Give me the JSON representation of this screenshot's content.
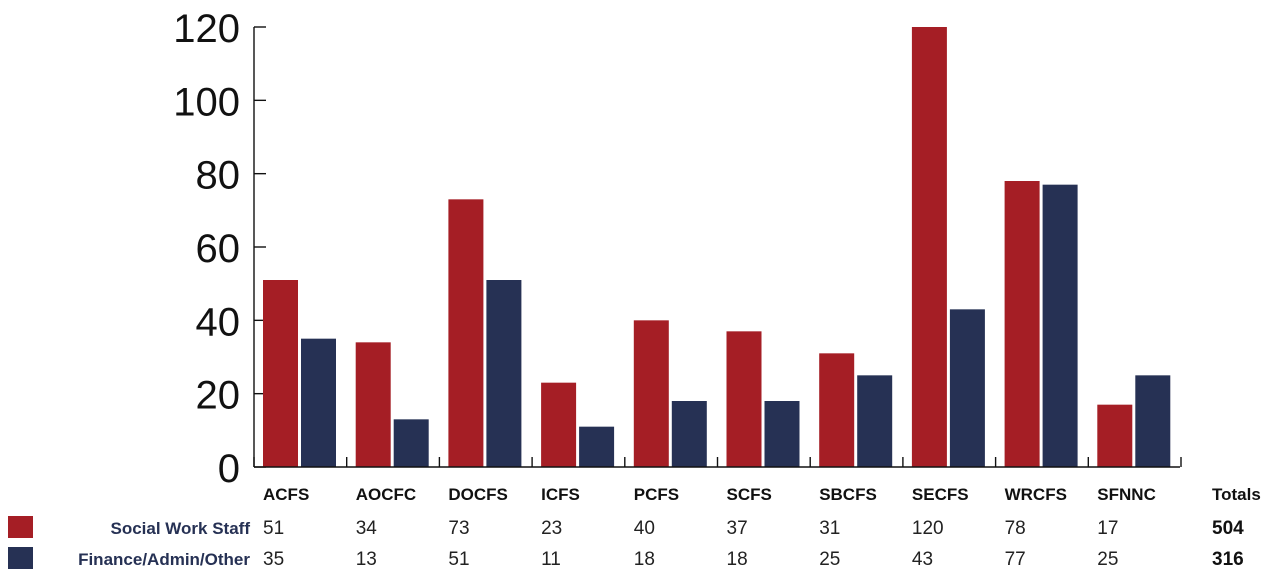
{
  "chart_data": {
    "type": "bar",
    "categories": [
      "ACFS",
      "AOCFC",
      "DOCFS",
      "ICFS",
      "PCFS",
      "SCFS",
      "SBCFS",
      "SECFS",
      "WRCFS",
      "SFNNC"
    ],
    "series": [
      {
        "name": "Social Work Staff",
        "values": [
          51,
          34,
          73,
          23,
          40,
          37,
          31,
          120,
          78,
          17
        ],
        "color": "#a51e25",
        "total": "504"
      },
      {
        "name": "Finance/Admin/Other",
        "values": [
          35,
          13,
          51,
          11,
          18,
          18,
          25,
          43,
          77,
          25
        ],
        "color": "#263154",
        "total": "316"
      }
    ],
    "yticks": [
      "0",
      "20",
      "40",
      "60",
      "80",
      "100",
      "120"
    ],
    "ylim": [
      0,
      120
    ],
    "totals_header": "Totals",
    "grid": false,
    "legend": "bottom-left table"
  }
}
